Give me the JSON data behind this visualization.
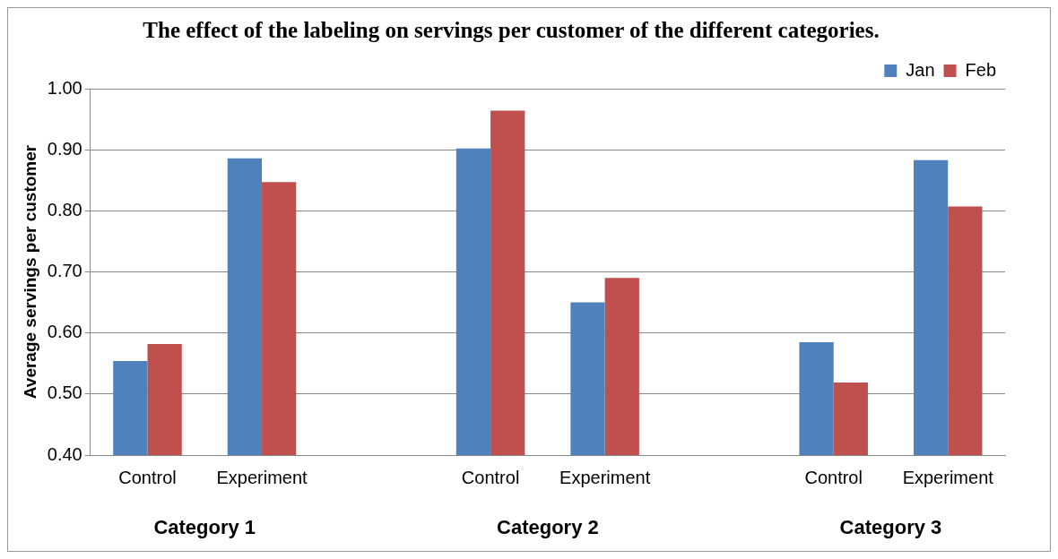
{
  "chart_data": {
    "type": "bar",
    "title": "The effect of the labeling on servings per customer of the different categories.",
    "ylabel": "Average servings per customer",
    "categories": [
      "Control",
      "Experiment",
      null,
      "Control",
      "Experiment",
      null,
      "Control",
      "Experiment"
    ],
    "annotations": [
      "Category 1",
      "Category 2",
      "Category 3"
    ],
    "series": [
      {
        "name": "Jan",
        "color": "#4f81bd",
        "values": [
          0.554,
          0.886,
          null,
          0.902,
          0.65,
          null,
          0.585,
          0.883
        ]
      },
      {
        "name": "Feb",
        "color": "#c0504d",
        "values": [
          0.582,
          0.847,
          null,
          0.964,
          0.69,
          null,
          0.519,
          0.807
        ]
      }
    ],
    "ylim": [
      0.4,
      1.0
    ],
    "yticks": [
      {
        "value": 0.4,
        "label": "0.40"
      },
      {
        "value": 0.5,
        "label": "0.50"
      },
      {
        "value": 0.6,
        "label": "0.60"
      },
      {
        "value": 0.7,
        "label": "0.70"
      },
      {
        "value": 0.8,
        "label": "0.80"
      },
      {
        "value": 0.9,
        "label": "0.90"
      },
      {
        "value": 1.0,
        "label": "1.00"
      }
    ],
    "grid": "y",
    "legend": "top right"
  }
}
